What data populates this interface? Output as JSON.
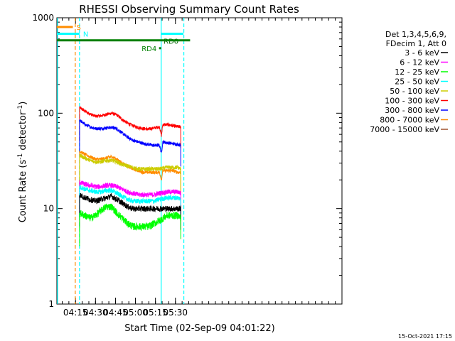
{
  "chart_data": {
    "type": "line",
    "title": "RHESSI Observing Summary Count Rates",
    "xlabel": "Start Time (02-Sep-09 04:01:22)",
    "ylabel_main": "Count Rate (s",
    "ylabel_sup": "-1",
    "ylabel_mid": " detector",
    "ylabel_sup2": "-1",
    "ylabel_end": ")",
    "footer": "15-Oct-2021 17:15",
    "x_range_min": [
      241,
      455
    ],
    "ylim": [
      1,
      1000
    ],
    "yscale": "log",
    "x_ticks": [
      {
        "t": 255,
        "label": "04:15"
      },
      {
        "t": 270,
        "label": "04:30"
      },
      {
        "t": 285,
        "label": "04:45"
      },
      {
        "t": 300,
        "label": "05:00"
      },
      {
        "t": 315,
        "label": "05:15"
      },
      {
        "t": 330,
        "label": "05:30"
      }
    ],
    "y_ticks": [
      {
        "v": 1,
        "label": "1"
      },
      {
        "v": 10,
        "label": "10"
      },
      {
        "v": 100,
        "label": "100"
      },
      {
        "v": 1000,
        "label": "1000"
      }
    ],
    "legend": {
      "header": [
        "Det 1,3,4,5,6,9,",
        "FDecim 1, Att 0"
      ],
      "entries": [
        {
          "label": "3 - 6 keV",
          "color": "#000000"
        },
        {
          "label": "6 - 12 keV",
          "color": "#ff00ff"
        },
        {
          "label": "12 - 25 keV",
          "color": "#00ff00"
        },
        {
          "label": "25 - 50 keV",
          "color": "#00ffff"
        },
        {
          "label": "50 - 100 keV",
          "color": "#cccc00"
        },
        {
          "label": "100 - 300 keV",
          "color": "#ff0000"
        },
        {
          "label": "300 - 800 keV",
          "color": "#0000ff"
        },
        {
          "label": "800 - 7000 keV",
          "color": "#ff8c00"
        },
        {
          "label": "7000 - 15000 keV",
          "color": "#a0522d"
        }
      ]
    },
    "series": [
      {
        "name": "100 - 300 keV",
        "color": "#ff0000",
        "noise": 0.04,
        "points": [
          [
            258,
            115
          ],
          [
            262,
            105
          ],
          [
            266,
            98
          ],
          [
            270,
            93
          ],
          [
            274,
            94
          ],
          [
            278,
            97
          ],
          [
            282,
            100
          ],
          [
            286,
            96
          ],
          [
            290,
            86
          ],
          [
            294,
            79
          ],
          [
            298,
            74
          ],
          [
            302,
            71
          ],
          [
            306,
            69
          ],
          [
            310,
            68
          ],
          [
            314,
            70
          ],
          [
            318,
            72
          ],
          [
            319.5,
            58
          ],
          [
            320.5,
            76
          ],
          [
            324,
            76
          ],
          [
            328,
            74
          ],
          [
            332,
            72
          ],
          [
            334,
            72
          ]
        ]
      },
      {
        "name": "300 - 800 keV",
        "color": "#0000ff",
        "noise": 0.04,
        "points": [
          [
            258,
            85
          ],
          [
            262,
            76
          ],
          [
            266,
            72
          ],
          [
            270,
            69
          ],
          [
            274,
            69
          ],
          [
            278,
            70
          ],
          [
            282,
            71
          ],
          [
            286,
            69
          ],
          [
            290,
            62
          ],
          [
            294,
            56
          ],
          [
            298,
            52
          ],
          [
            302,
            50
          ],
          [
            306,
            48
          ],
          [
            310,
            47
          ],
          [
            314,
            46
          ],
          [
            318,
            46
          ],
          [
            319.5,
            38
          ],
          [
            320.5,
            50
          ],
          [
            324,
            49
          ],
          [
            328,
            48
          ],
          [
            332,
            47
          ],
          [
            334,
            46
          ]
        ]
      },
      {
        "name": "800 - 7000 keV",
        "color": "#ff8c00",
        "noise": 0.04,
        "points": [
          [
            258,
            40
          ],
          [
            262,
            37
          ],
          [
            266,
            35
          ],
          [
            270,
            33
          ],
          [
            274,
            33
          ],
          [
            278,
            34
          ],
          [
            282,
            35
          ],
          [
            286,
            33
          ],
          [
            290,
            30
          ],
          [
            294,
            28
          ],
          [
            298,
            26
          ],
          [
            302,
            25
          ],
          [
            306,
            24
          ],
          [
            310,
            24
          ],
          [
            314,
            24
          ],
          [
            318,
            24
          ],
          [
            319.5,
            20
          ],
          [
            320.5,
            25
          ],
          [
            324,
            25
          ],
          [
            328,
            25
          ],
          [
            332,
            24
          ],
          [
            334,
            24
          ]
        ]
      },
      {
        "name": "50 - 100 keV",
        "color": "#cccc00",
        "noise": 0.05,
        "points": [
          [
            258,
            36
          ],
          [
            262,
            34
          ],
          [
            266,
            32
          ],
          [
            270,
            31
          ],
          [
            274,
            31
          ],
          [
            278,
            32
          ],
          [
            282,
            32
          ],
          [
            286,
            31
          ],
          [
            290,
            29
          ],
          [
            294,
            28
          ],
          [
            298,
            27
          ],
          [
            302,
            26
          ],
          [
            306,
            26
          ],
          [
            310,
            26
          ],
          [
            314,
            26
          ],
          [
            318,
            26
          ],
          [
            324,
            27
          ],
          [
            328,
            27
          ],
          [
            332,
            27
          ],
          [
            334,
            26
          ]
        ]
      },
      {
        "name": "6 - 12 keV",
        "color": "#ff00ff",
        "noise": 0.06,
        "points": [
          [
            258,
            19
          ],
          [
            262,
            18
          ],
          [
            266,
            17.5
          ],
          [
            270,
            17
          ],
          [
            274,
            17
          ],
          [
            278,
            17.5
          ],
          [
            282,
            17.5
          ],
          [
            286,
            17
          ],
          [
            290,
            16
          ],
          [
            294,
            15
          ],
          [
            298,
            14.5
          ],
          [
            302,
            14
          ],
          [
            306,
            14
          ],
          [
            310,
            14
          ],
          [
            314,
            14
          ],
          [
            318,
            14.5
          ],
          [
            324,
            15
          ],
          [
            328,
            15
          ],
          [
            332,
            15
          ],
          [
            334,
            14.5
          ]
        ]
      },
      {
        "name": "25 - 50 keV",
        "color": "#00ffff",
        "noise": 0.06,
        "points": [
          [
            258,
            17
          ],
          [
            262,
            16
          ],
          [
            266,
            15.5
          ],
          [
            270,
            15
          ],
          [
            274,
            15
          ],
          [
            278,
            15.5
          ],
          [
            282,
            15.5
          ],
          [
            286,
            14.5
          ],
          [
            290,
            13.5
          ],
          [
            294,
            12.5
          ],
          [
            298,
            12
          ],
          [
            302,
            12
          ],
          [
            306,
            12
          ],
          [
            310,
            12
          ],
          [
            314,
            12
          ],
          [
            318,
            12.5
          ],
          [
            324,
            13
          ],
          [
            328,
            13
          ],
          [
            332,
            13
          ],
          [
            334,
            12.5
          ]
        ]
      },
      {
        "name": "3 - 6 keV",
        "color": "#000000",
        "noise": 0.07,
        "points": [
          [
            258,
            14
          ],
          [
            262,
            13
          ],
          [
            266,
            12.5
          ],
          [
            270,
            12
          ],
          [
            274,
            12.5
          ],
          [
            278,
            13
          ],
          [
            282,
            13.5
          ],
          [
            286,
            12.5
          ],
          [
            290,
            11.5
          ],
          [
            294,
            10.5
          ],
          [
            298,
            10
          ],
          [
            302,
            10
          ],
          [
            306,
            10
          ],
          [
            310,
            10
          ],
          [
            314,
            10
          ],
          [
            318,
            10
          ],
          [
            324,
            10
          ],
          [
            328,
            10
          ],
          [
            332,
            10
          ],
          [
            334,
            10
          ]
        ]
      },
      {
        "name": "12 - 25 keV",
        "color": "#00ff00",
        "noise": 0.09,
        "points": [
          [
            258,
            9
          ],
          [
            262,
            8.5
          ],
          [
            266,
            8
          ],
          [
            270,
            8.5
          ],
          [
            274,
            9.5
          ],
          [
            278,
            10.5
          ],
          [
            282,
            10.5
          ],
          [
            286,
            9
          ],
          [
            290,
            8
          ],
          [
            294,
            7
          ],
          [
            298,
            6.5
          ],
          [
            302,
            6.5
          ],
          [
            306,
            6.5
          ],
          [
            310,
            6.5
          ],
          [
            314,
            7
          ],
          [
            318,
            7.5
          ],
          [
            324,
            8.5
          ],
          [
            328,
            8.5
          ],
          [
            332,
            8.5
          ],
          [
            334,
            8
          ]
        ]
      }
    ],
    "top_bars": [
      {
        "label": "S",
        "color": "#ff8c00",
        "x0": 241,
        "x1": 253,
        "value": 800
      },
      {
        "label": "N",
        "color": "#00ffff",
        "x0": 241,
        "x1": 258,
        "value": 680
      },
      {
        "label": "RD0",
        "color": "#00ffff",
        "x0": 319,
        "x1": 336,
        "value": 680
      },
      {
        "label": "",
        "color": "#008000",
        "x0": 241,
        "x1": 341,
        "value": 580
      }
    ],
    "markers": [
      {
        "label": "RD4",
        "color": "#008000",
        "x": 318.5,
        "value": 480
      }
    ],
    "vlines": [
      {
        "t": 241.5,
        "color": "#00ffff",
        "dashed": false
      },
      {
        "t": 254.8,
        "color": "#ff8c00",
        "dashed": true
      },
      {
        "t": 258.0,
        "color": "#00ffff",
        "dashed": true
      },
      {
        "t": 319.3,
        "color": "#00ffff",
        "dashed": false
      },
      {
        "t": 336.3,
        "color": "#00ffff",
        "dashed": true
      }
    ]
  }
}
